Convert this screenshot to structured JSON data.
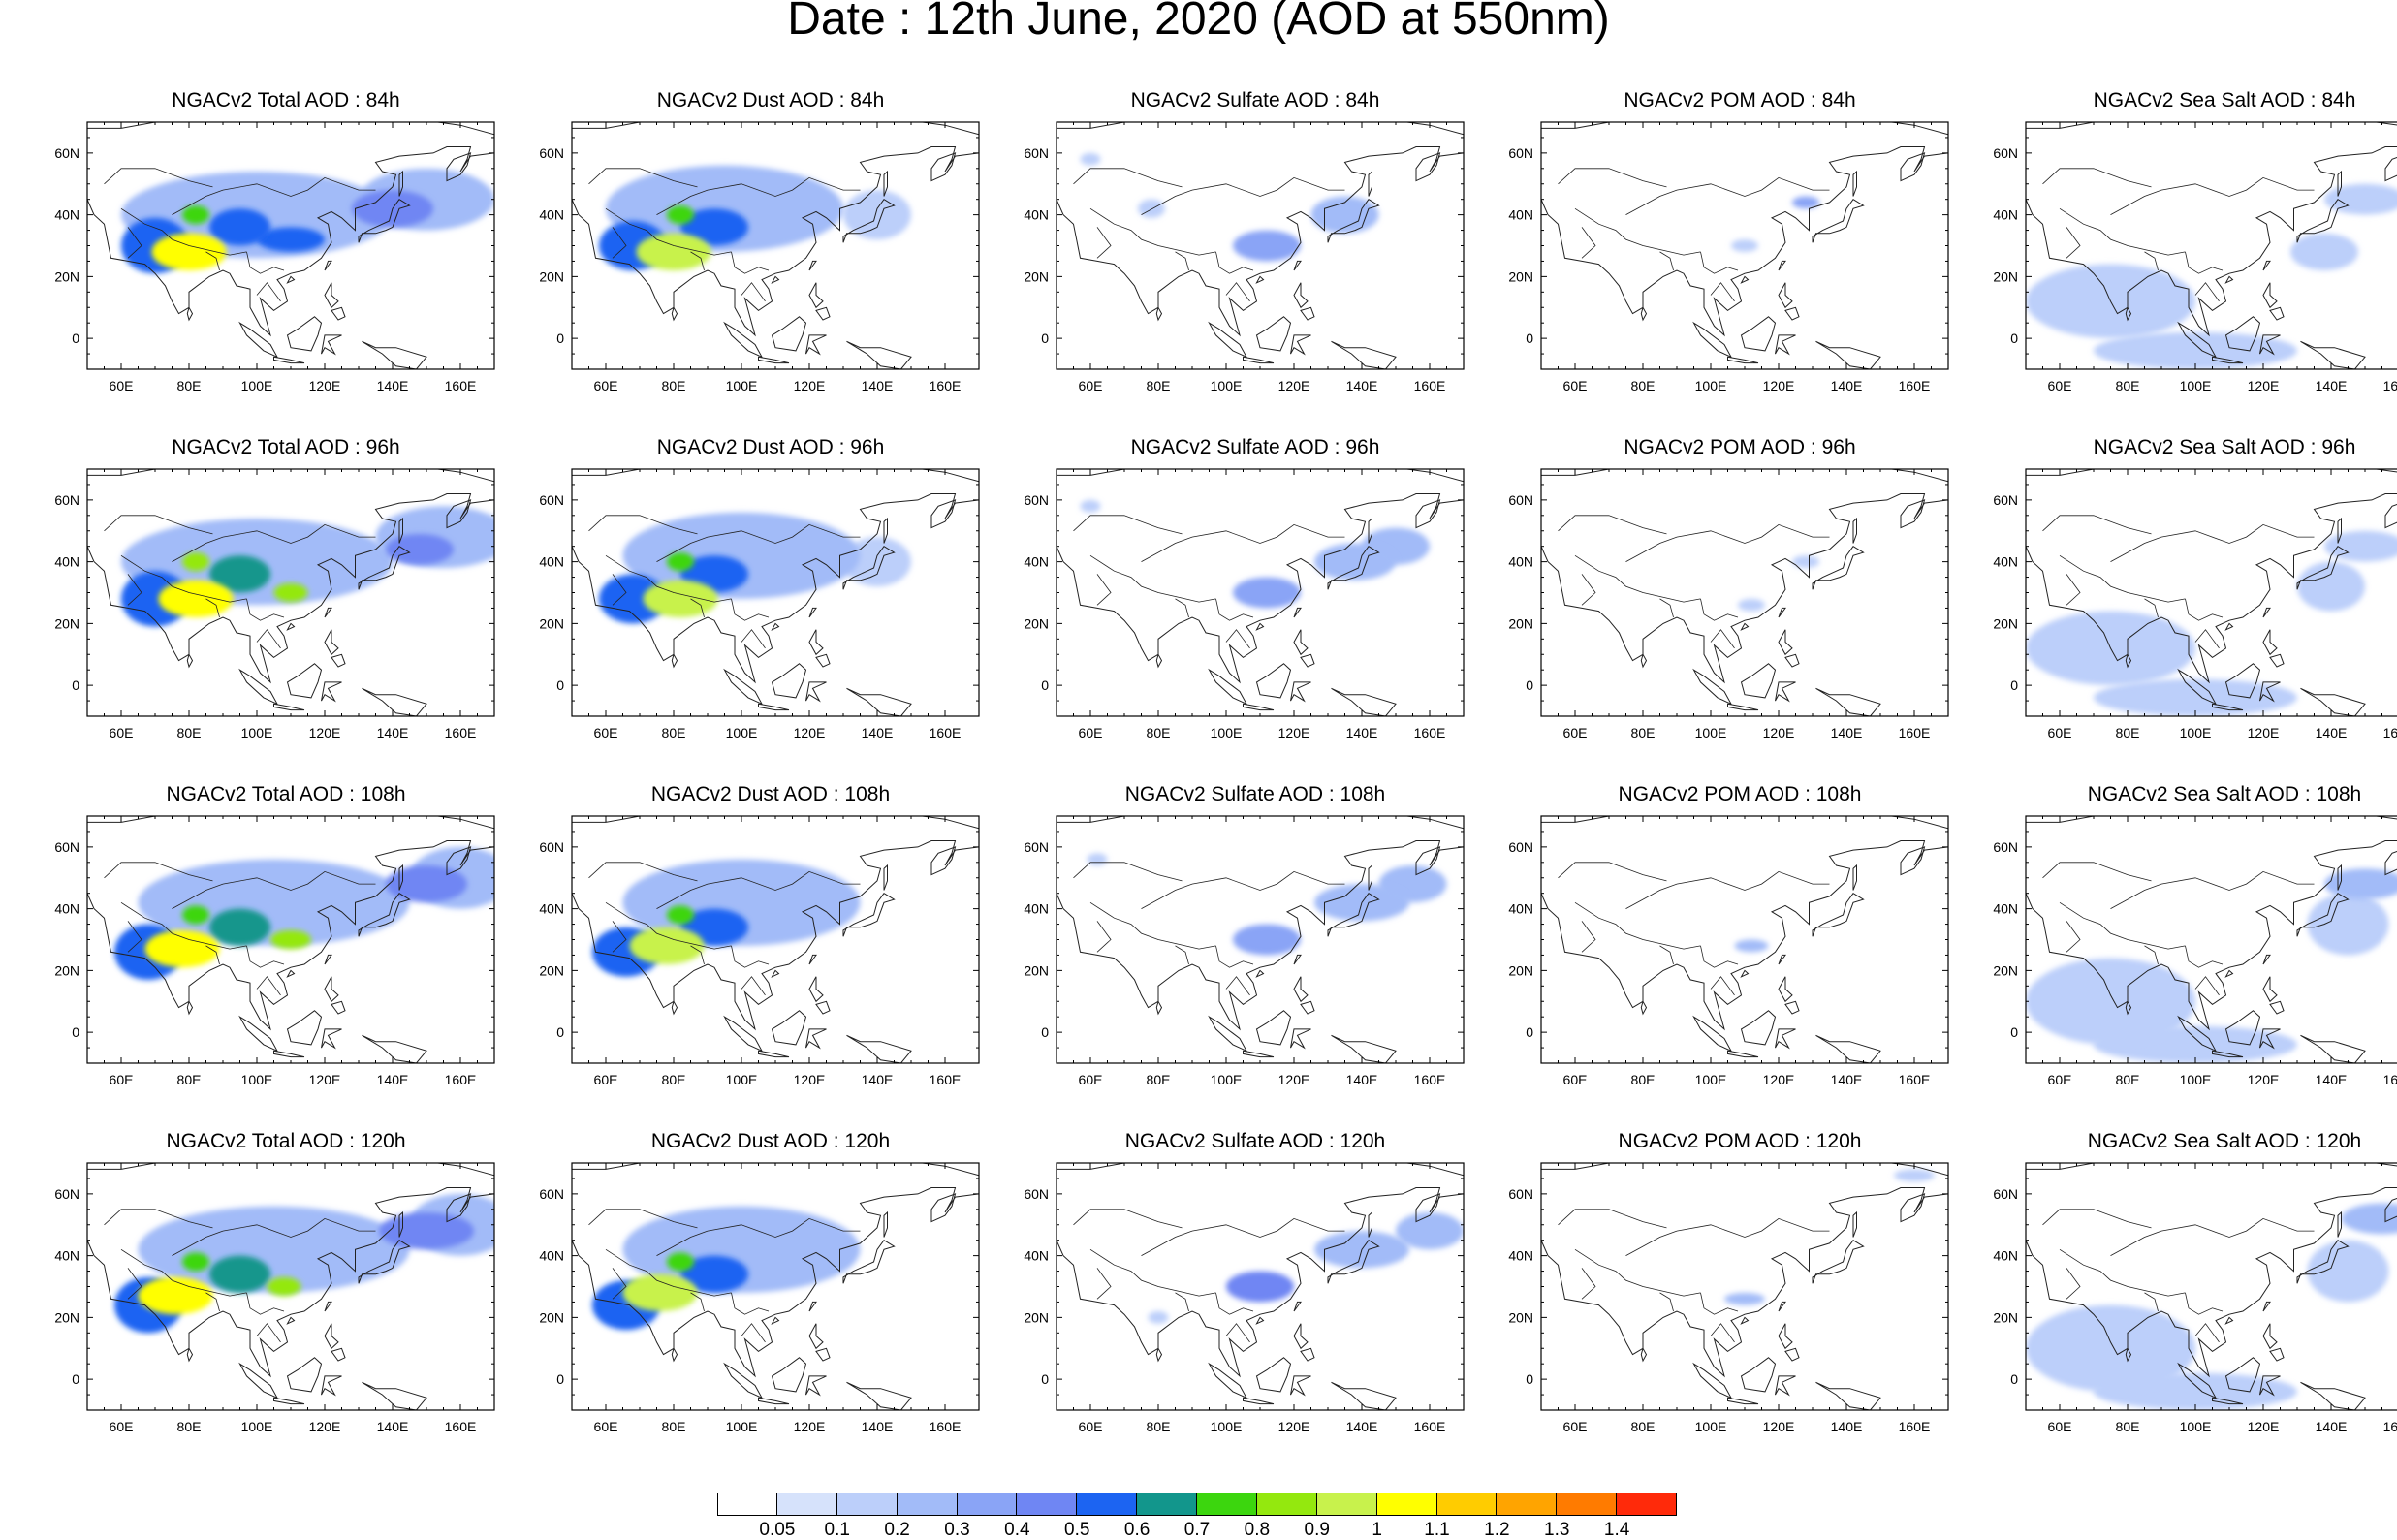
{
  "title": "Date : 12th June, 2020 (AOD at 550nm)",
  "axes": {
    "lon_ticks": [
      "60E",
      "80E",
      "100E",
      "120E",
      "140E",
      "160E"
    ],
    "lat_ticks": [
      "60N",
      "40N",
      "20N",
      "0"
    ],
    "lon_range": [
      50,
      170
    ],
    "lat_range": [
      -10,
      70
    ]
  },
  "species": [
    "Total",
    "Dust",
    "Sulfate",
    "POM",
    "Sea Salt"
  ],
  "panel_titles": [
    [
      "NGACv2 Total AOD : 84h",
      "NGACv2 Dust AOD : 84h",
      "NGACv2 Sulfate AOD : 84h",
      "NGACv2 POM AOD : 84h",
      "NGACv2 Sea Salt AOD : 84h"
    ],
    [
      "NGACv2 Total AOD : 96h",
      "NGACv2 Dust AOD : 96h",
      "NGACv2 Sulfate AOD : 96h",
      "NGACv2 POM AOD : 96h",
      "NGACv2 Sea Salt AOD : 96h"
    ],
    [
      "NGACv2 Total AOD : 108h",
      "NGACv2 Dust AOD : 108h",
      "NGACv2 Sulfate AOD : 108h",
      "NGACv2 POM AOD : 108h",
      "NGACv2 Sea Salt AOD : 108h"
    ],
    [
      "NGACv2 Total AOD : 120h",
      "NGACv2 Dust AOD : 120h",
      "NGACv2 Sulfate AOD : 120h",
      "NGACv2 POM AOD : 120h",
      "NGACv2 Sea Salt  AOD : 120h"
    ]
  ],
  "colorbar": {
    "labels": [
      "0.05",
      "0.1",
      "0.2",
      "0.3",
      "0.4",
      "0.5",
      "0.6",
      "0.7",
      "0.8",
      "0.9",
      "1",
      "1.1",
      "1.2",
      "1.3",
      "1.4"
    ],
    "colors": [
      "#ffffff",
      "#d6e2fb",
      "#bccffa",
      "#a2bbf8",
      "#8aa4f6",
      "#6f86f3",
      "#1c64f2",
      "#12968c",
      "#3cd60e",
      "#94e80e",
      "#c8f24c",
      "#ffff00",
      "#ffcc00",
      "#ffa400",
      "#ff7b00",
      "#ff2a0a"
    ]
  },
  "chart_data": {
    "type": "heatmap",
    "variable": "AOD at 550nm",
    "note_units": "AOD (dimensionless), lon in degrees E, lat in degrees N",
    "rows": [
      "84h",
      "96h",
      "108h",
      "120h"
    ],
    "fields": {
      "Total": [
        [
          [
            80,
            28,
            11,
            6,
            1.0
          ],
          [
            95,
            36,
            9,
            6,
            0.55
          ],
          [
            70,
            30,
            10,
            9,
            0.5
          ],
          [
            82,
            40,
            4,
            3,
            0.75
          ],
          [
            140,
            42,
            12,
            6,
            0.45
          ],
          [
            100,
            40,
            40,
            14,
            0.25
          ],
          [
            110,
            32,
            10,
            4,
            0.5
          ],
          [
            150,
            45,
            20,
            10,
            0.25
          ]
        ],
        [
          [
            82,
            28,
            11,
            6,
            1.0
          ],
          [
            95,
            36,
            9,
            6,
            0.6
          ],
          [
            70,
            28,
            10,
            9,
            0.55
          ],
          [
            82,
            40,
            4,
            3,
            0.8
          ],
          [
            110,
            30,
            5,
            3,
            0.8
          ],
          [
            148,
            44,
            10,
            5,
            0.45
          ],
          [
            100,
            40,
            40,
            14,
            0.25
          ],
          [
            155,
            48,
            20,
            10,
            0.25
          ]
        ],
        [
          [
            78,
            27,
            11,
            6,
            1.0
          ],
          [
            95,
            34,
            9,
            6,
            0.6
          ],
          [
            68,
            26,
            10,
            9,
            0.5
          ],
          [
            82,
            38,
            4,
            3,
            0.75
          ],
          [
            110,
            30,
            6,
            3,
            0.8
          ],
          [
            150,
            48,
            12,
            6,
            0.4
          ],
          [
            105,
            42,
            40,
            14,
            0.25
          ],
          [
            160,
            50,
            15,
            10,
            0.25
          ]
        ],
        [
          [
            76,
            27,
            11,
            6,
            1.0
          ],
          [
            95,
            34,
            9,
            6,
            0.6
          ],
          [
            68,
            24,
            10,
            9,
            0.5
          ],
          [
            82,
            38,
            4,
            3,
            0.7
          ],
          [
            108,
            30,
            5,
            3,
            0.8
          ],
          [
            150,
            48,
            14,
            6,
            0.4
          ],
          [
            105,
            42,
            40,
            14,
            0.25
          ],
          [
            160,
            50,
            15,
            10,
            0.25
          ]
        ]
      ],
      "Dust": [
        [
          [
            80,
            28,
            11,
            6,
            0.95
          ],
          [
            92,
            36,
            10,
            6,
            0.5
          ],
          [
            68,
            30,
            10,
            8,
            0.5
          ],
          [
            82,
            40,
            4,
            3,
            0.7
          ],
          [
            95,
            42,
            35,
            14,
            0.2
          ],
          [
            140,
            40,
            10,
            8,
            0.15
          ]
        ],
        [
          [
            82,
            28,
            11,
            6,
            0.95
          ],
          [
            92,
            36,
            10,
            6,
            0.55
          ],
          [
            68,
            28,
            10,
            8,
            0.5
          ],
          [
            82,
            40,
            4,
            3,
            0.75
          ],
          [
            100,
            42,
            35,
            14,
            0.2
          ],
          [
            140,
            40,
            10,
            8,
            0.15
          ]
        ],
        [
          [
            78,
            28,
            11,
            6,
            0.9
          ],
          [
            92,
            34,
            10,
            6,
            0.55
          ],
          [
            66,
            26,
            10,
            8,
            0.5
          ],
          [
            82,
            38,
            4,
            3,
            0.7
          ],
          [
            100,
            42,
            35,
            14,
            0.2
          ]
        ],
        [
          [
            76,
            28,
            11,
            6,
            0.9
          ],
          [
            92,
            34,
            10,
            6,
            0.55
          ],
          [
            66,
            24,
            10,
            8,
            0.5
          ],
          [
            82,
            38,
            4,
            3,
            0.7
          ],
          [
            100,
            42,
            35,
            14,
            0.2
          ]
        ]
      ],
      "Sulfate": [
        [
          [
            112,
            30,
            10,
            5,
            0.35
          ],
          [
            135,
            40,
            10,
            6,
            0.25
          ],
          [
            78,
            42,
            4,
            3,
            0.15
          ],
          [
            60,
            58,
            3,
            2,
            0.15
          ]
        ],
        [
          [
            112,
            30,
            10,
            5,
            0.35
          ],
          [
            138,
            40,
            12,
            6,
            0.25
          ],
          [
            150,
            45,
            10,
            6,
            0.2
          ],
          [
            60,
            58,
            3,
            2,
            0.15
          ]
        ],
        [
          [
            112,
            30,
            10,
            5,
            0.35
          ],
          [
            140,
            42,
            14,
            6,
            0.25
          ],
          [
            155,
            48,
            10,
            6,
            0.2
          ],
          [
            62,
            56,
            3,
            2,
            0.15
          ]
        ],
        [
          [
            110,
            30,
            10,
            5,
            0.4
          ],
          [
            140,
            42,
            14,
            6,
            0.25
          ],
          [
            160,
            48,
            10,
            6,
            0.2
          ],
          [
            80,
            20,
            3,
            2,
            0.15
          ]
        ]
      ],
      "POM": [
        [
          [
            128,
            44,
            4,
            2,
            0.3
          ],
          [
            110,
            30,
            4,
            2,
            0.15
          ]
        ],
        [
          [
            112,
            26,
            4,
            2,
            0.15
          ],
          [
            128,
            40,
            4,
            2,
            0.15
          ]
        ],
        [
          [
            112,
            28,
            5,
            2,
            0.2
          ]
        ],
        [
          [
            110,
            26,
            6,
            2,
            0.2
          ],
          [
            160,
            66,
            6,
            2,
            0.15
          ]
        ]
      ],
      "Sea Salt": [
        [
          [
            75,
            12,
            25,
            12,
            0.15
          ],
          [
            100,
            -4,
            30,
            6,
            0.15
          ],
          [
            150,
            45,
            12,
            5,
            0.15
          ],
          [
            138,
            28,
            10,
            6,
            0.12
          ]
        ],
        [
          [
            75,
            12,
            25,
            12,
            0.18
          ],
          [
            100,
            -4,
            30,
            6,
            0.15
          ],
          [
            150,
            45,
            12,
            5,
            0.18
          ],
          [
            140,
            32,
            10,
            8,
            0.15
          ]
        ],
        [
          [
            75,
            10,
            25,
            14,
            0.18
          ],
          [
            100,
            -4,
            30,
            6,
            0.15
          ],
          [
            150,
            48,
            12,
            5,
            0.2
          ],
          [
            145,
            35,
            12,
            10,
            0.15
          ]
        ],
        [
          [
            75,
            10,
            25,
            14,
            0.18
          ],
          [
            100,
            -4,
            30,
            6,
            0.15
          ],
          [
            155,
            52,
            12,
            5,
            0.22
          ],
          [
            145,
            35,
            12,
            10,
            0.15
          ]
        ]
      ]
    }
  }
}
